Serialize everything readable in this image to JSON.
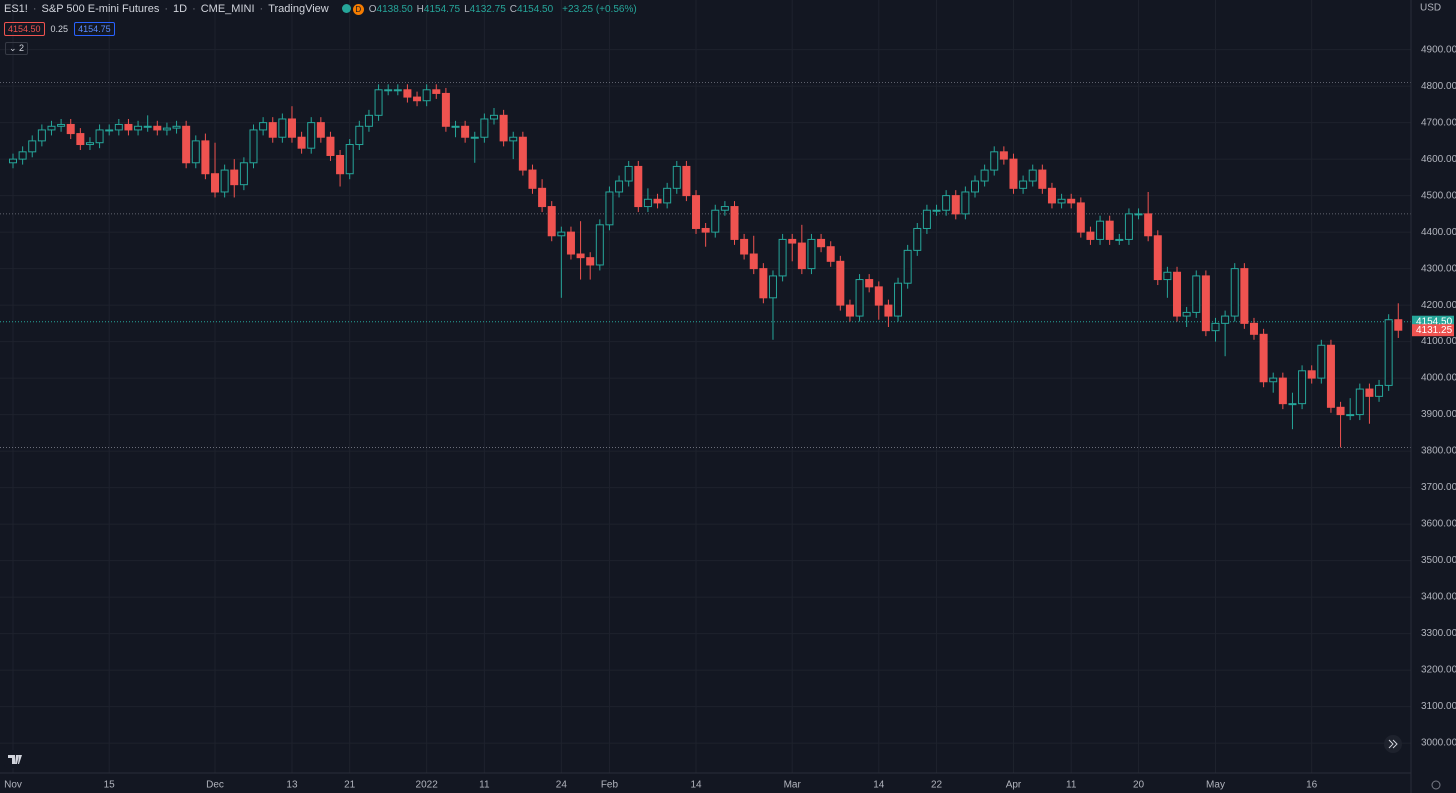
{
  "header": {
    "symbol": "ES1!",
    "name": "S&P 500 E-mini Futures",
    "interval": "1D",
    "exchange": "CME_MINI",
    "source": "TradingView",
    "badge": "D",
    "ohlc": [
      {
        "key": "O",
        "value": "4138.50"
      },
      {
        "key": "H",
        "value": "4154.75"
      },
      {
        "key": "L",
        "value": "4132.75"
      },
      {
        "key": "C",
        "value": "4154.50"
      }
    ],
    "change": "+23.25 (+0.56%)",
    "bid": "4154.50",
    "spread": "0.25",
    "ask": "4154.75",
    "indicators": "2"
  },
  "chart_data": {
    "type": "candlestick",
    "currency": "USD",
    "categories": [
      "Nov",
      null,
      null,
      null,
      null,
      null,
      null,
      null,
      null,
      null,
      "15",
      null,
      null,
      null,
      null,
      null,
      null,
      null,
      null,
      null,
      null,
      "Dec",
      null,
      null,
      null,
      null,
      null,
      null,
      null,
      "13",
      null,
      null,
      null,
      null,
      null,
      "21",
      null,
      null,
      null,
      null,
      null,
      null,
      null,
      "2022",
      null,
      null,
      null,
      null,
      null,
      "11",
      null,
      null,
      null,
      null,
      null,
      null,
      null,
      "24",
      null,
      null,
      null,
      null,
      "Feb",
      null,
      null,
      null,
      null,
      null,
      null,
      null,
      null,
      "14",
      null,
      null,
      null,
      null,
      null,
      null,
      null,
      null,
      null,
      "Mar",
      null,
      null,
      null,
      null,
      null,
      null,
      null,
      null,
      "14",
      null,
      null,
      null,
      null,
      null,
      "22",
      null,
      null,
      null,
      null,
      null,
      null,
      null,
      "Apr",
      null,
      null,
      null,
      null,
      null,
      "11",
      null,
      null,
      null,
      null,
      null,
      null,
      "20",
      null,
      null,
      null,
      null,
      null,
      null,
      null,
      "May",
      null,
      null,
      null,
      null,
      null,
      null,
      null,
      null,
      null,
      "16",
      null,
      null,
      null,
      null,
      null,
      null,
      null,
      null,
      null
    ],
    "open": [
      4590,
      4600,
      4620,
      4650,
      4680,
      4690,
      4695,
      4670,
      4640,
      4645,
      4680,
      4680,
      4695,
      4680,
      4690,
      4690,
      4680,
      4685,
      4690,
      4590,
      4650,
      4560,
      4510,
      4570,
      4530,
      4590,
      4680,
      4700,
      4660,
      4710,
      4660,
      4630,
      4700,
      4660,
      4610,
      4560,
      4640,
      4690,
      4720,
      4790,
      4790,
      4790,
      4770,
      4760,
      4790,
      4780,
      4690,
      4690,
      4660,
      4660,
      4710,
      4720,
      4650,
      4660,
      4570,
      4520,
      4470,
      4390,
      4400,
      4340,
      4330,
      4310,
      4420,
      4510,
      4540,
      4580,
      4470,
      4490,
      4480,
      4520,
      4580,
      4500,
      4410,
      4400,
      4460,
      4470,
      4380,
      4340,
      4300,
      4220,
      4280,
      4380,
      4370,
      4300,
      4380,
      4360,
      4320,
      4200,
      4170,
      4270,
      4250,
      4200,
      4170,
      4260,
      4350,
      4410,
      4460,
      4460,
      4500,
      4450,
      4510,
      4540,
      4570,
      4620,
      4600,
      4520,
      4540,
      4570,
      4520,
      4480,
      4490,
      4480,
      4400,
      4380,
      4430,
      4380,
      4380,
      4450,
      4450,
      4390,
      4270,
      4290,
      4170,
      4180,
      4280,
      4130,
      4150,
      4170,
      4300,
      4150,
      4120,
      3990,
      4000,
      3930,
      3930,
      4020,
      4000,
      4090,
      3920,
      3900,
      3900,
      3970,
      3950,
      3980,
      4160
    ],
    "high": [
      4615,
      4635,
      4665,
      4695,
      4705,
      4710,
      4710,
      4685,
      4660,
      4695,
      4695,
      4710,
      4710,
      4705,
      4720,
      4705,
      4700,
      4705,
      4705,
      4665,
      4670,
      4645,
      4585,
      4600,
      4605,
      4695,
      4715,
      4715,
      4725,
      4745,
      4675,
      4715,
      4715,
      4675,
      4625,
      4655,
      4705,
      4735,
      4805,
      4805,
      4805,
      4805,
      4785,
      4805,
      4805,
      4795,
      4705,
      4705,
      4675,
      4725,
      4740,
      4735,
      4675,
      4675,
      4585,
      4545,
      4485,
      4415,
      4415,
      4430,
      4345,
      4435,
      4525,
      4555,
      4595,
      4595,
      4520,
      4505,
      4535,
      4595,
      4595,
      4515,
      4425,
      4475,
      4485,
      4485,
      4395,
      4390,
      4315,
      4295,
      4395,
      4395,
      4420,
      4395,
      4395,
      4375,
      4335,
      4215,
      4285,
      4285,
      4265,
      4215,
      4275,
      4365,
      4425,
      4475,
      4475,
      4515,
      4515,
      4525,
      4555,
      4585,
      4635,
      4635,
      4615,
      4555,
      4585,
      4585,
      4535,
      4505,
      4505,
      4495,
      4415,
      4445,
      4445,
      4395,
      4465,
      4465,
      4510,
      4405,
      4305,
      4305,
      4195,
      4295,
      4295,
      4165,
      4185,
      4315,
      4315,
      4165,
      4135,
      4015,
      4015,
      3960,
      4035,
      4035,
      4105,
      4105,
      3935,
      3945,
      3985,
      3985,
      3995,
      4175,
      4205
    ],
    "low": [
      4575,
      4585,
      4605,
      4635,
      4665,
      4675,
      4655,
      4625,
      4625,
      4630,
      4665,
      4665,
      4665,
      4665,
      4675,
      4665,
      4665,
      4670,
      4575,
      4575,
      4545,
      4495,
      4495,
      4495,
      4515,
      4575,
      4665,
      4645,
      4645,
      4645,
      4615,
      4615,
      4645,
      4595,
      4525,
      4545,
      4625,
      4675,
      4705,
      4775,
      4775,
      4755,
      4745,
      4745,
      4765,
      4675,
      4660,
      4645,
      4590,
      4645,
      4695,
      4635,
      4600,
      4555,
      4505,
      4455,
      4375,
      4220,
      4325,
      4270,
      4270,
      4295,
      4405,
      4495,
      4525,
      4455,
      4455,
      4465,
      4465,
      4505,
      4485,
      4395,
      4360,
      4385,
      4445,
      4365,
      4325,
      4285,
      4205,
      4105,
      4265,
      4320,
      4285,
      4285,
      4345,
      4305,
      4185,
      4155,
      4155,
      4235,
      4160,
      4140,
      4155,
      4245,
      4335,
      4395,
      4445,
      4445,
      4435,
      4435,
      4495,
      4525,
      4555,
      4585,
      4505,
      4505,
      4525,
      4505,
      4465,
      4465,
      4465,
      4385,
      4365,
      4365,
      4365,
      4365,
      4365,
      4435,
      4375,
      4255,
      4220,
      4155,
      4140,
      4165,
      4115,
      4100,
      4060,
      4155,
      4135,
      4105,
      3975,
      3960,
      3915,
      3860,
      3915,
      3985,
      3985,
      3905,
      3810,
      3885,
      3885,
      3875,
      3935,
      3965,
      4110
    ],
    "close": [
      4600,
      4620,
      4650,
      4680,
      4690,
      4695,
      4670,
      4640,
      4645,
      4680,
      4680,
      4695,
      4680,
      4690,
      4690,
      4680,
      4685,
      4690,
      4590,
      4650,
      4560,
      4510,
      4570,
      4530,
      4590,
      4680,
      4700,
      4660,
      4710,
      4660,
      4630,
      4700,
      4660,
      4610,
      4560,
      4640,
      4690,
      4720,
      4790,
      4790,
      4790,
      4770,
      4760,
      4790,
      4780,
      4690,
      4690,
      4660,
      4660,
      4710,
      4720,
      4650,
      4660,
      4570,
      4520,
      4470,
      4390,
      4400,
      4340,
      4330,
      4310,
      4420,
      4510,
      4540,
      4580,
      4470,
      4490,
      4480,
      4520,
      4580,
      4500,
      4410,
      4400,
      4460,
      4470,
      4380,
      4340,
      4300,
      4220,
      4280,
      4380,
      4370,
      4300,
      4380,
      4360,
      4320,
      4200,
      4170,
      4270,
      4250,
      4200,
      4170,
      4260,
      4350,
      4410,
      4460,
      4460,
      4500,
      4450,
      4510,
      4540,
      4570,
      4620,
      4600,
      4520,
      4540,
      4570,
      4520,
      4480,
      4490,
      4480,
      4400,
      4380,
      4430,
      4380,
      4380,
      4450,
      4450,
      4390,
      4270,
      4290,
      4170,
      4180,
      4280,
      4130,
      4150,
      4170,
      4300,
      4150,
      4120,
      3990,
      4000,
      3930,
      3930,
      4020,
      4000,
      4090,
      3920,
      3900,
      3900,
      3970,
      3950,
      3980,
      4160,
      4131.25
    ],
    "ylim": [
      2918,
      5036
    ],
    "yticks": [
      {
        "value": 3000,
        "label": "3000.00"
      },
      {
        "value": 3100,
        "label": "3100.00"
      },
      {
        "value": 3200,
        "label": "3200.00"
      },
      {
        "value": 3300,
        "label": "3300.00"
      },
      {
        "value": 3400,
        "label": "3400.00"
      },
      {
        "value": 3500,
        "label": "3500.00"
      },
      {
        "value": 3600,
        "label": "3600.00"
      },
      {
        "value": 3700,
        "label": "3700.00"
      },
      {
        "value": 3800,
        "label": "3800.00"
      },
      {
        "value": 3900,
        "label": "3900.00"
      },
      {
        "value": 4000,
        "label": "4000.00"
      },
      {
        "value": 4100,
        "label": "4100.00"
      },
      {
        "value": 4200,
        "label": "4200.00"
      },
      {
        "value": 4300,
        "label": "4300.00"
      },
      {
        "value": 4400,
        "label": "4400.00"
      },
      {
        "value": 4500,
        "label": "4500.00"
      },
      {
        "value": 4600,
        "label": "4600.00"
      },
      {
        "value": 4700,
        "label": "4700.00"
      },
      {
        "value": 4800,
        "label": "4800.00"
      },
      {
        "value": 4900,
        "label": "4900.00"
      }
    ],
    "grid": true,
    "up_color": "#26a69a",
    "down_color": "#ef5350",
    "hlines": [
      4810,
      4450,
      3810
    ],
    "last_price": 4154.5,
    "price_labels": [
      {
        "value": 4154.5,
        "label": "4154.50",
        "color": "#26a69a"
      },
      {
        "value": 4131.25,
        "label": "4131.25",
        "color": "#ef5350"
      }
    ]
  }
}
